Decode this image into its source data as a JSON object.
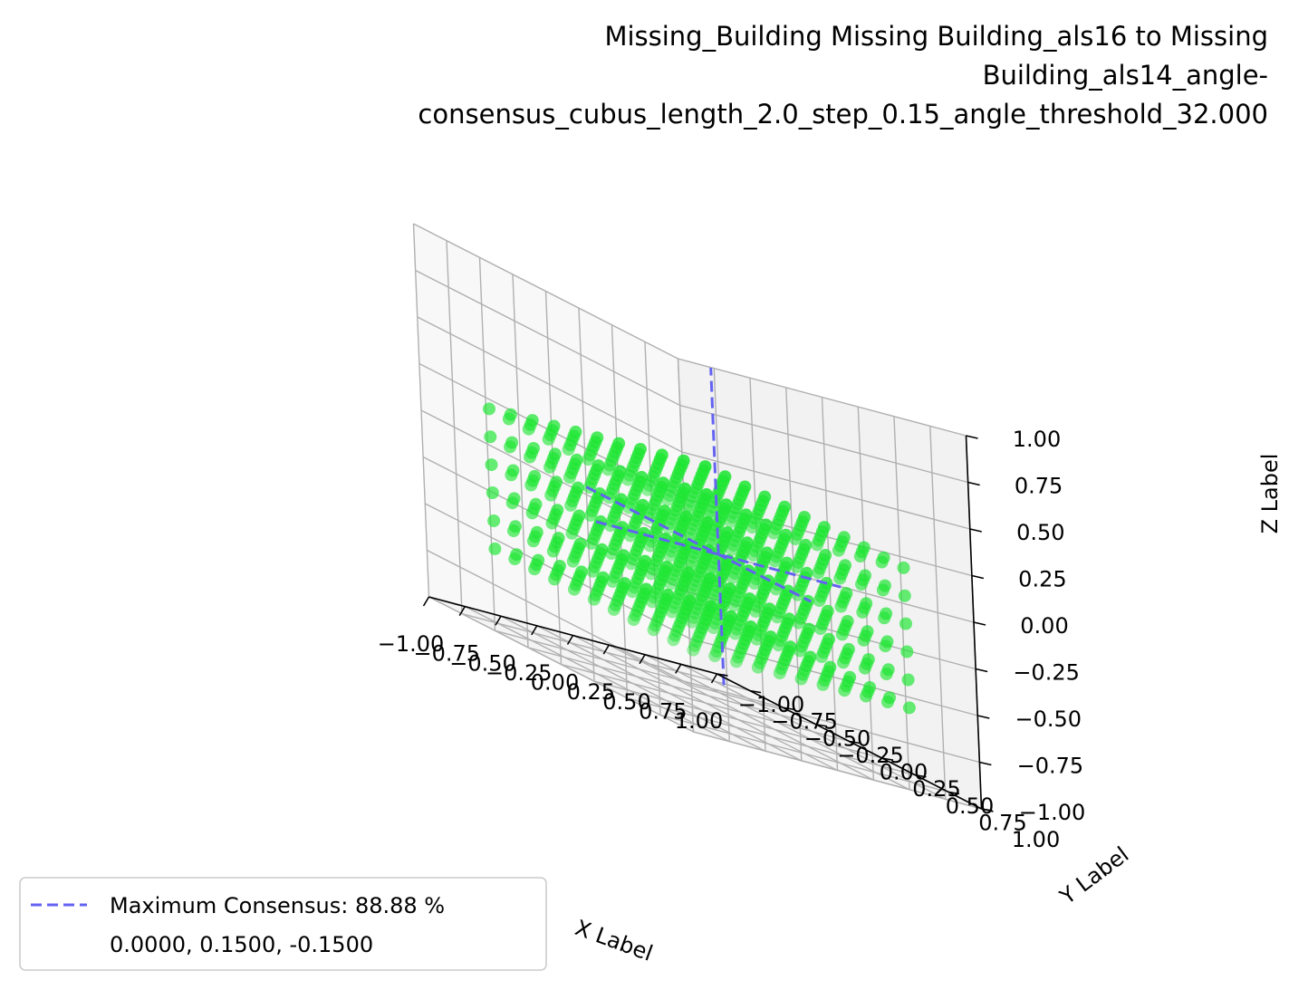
{
  "chart_data": {
    "type": "scatter",
    "title_lines": [
      "Missing_Building Missing Building_als16 to Missing",
      "Building_als14_angle-",
      "consensus_cubus_length_2.0_step_0.15_angle_threshold_32.000"
    ],
    "xlabel": "X Label",
    "ylabel": "Y Label",
    "zlabel": "Z Label",
    "xlim": [
      -1.0,
      1.0
    ],
    "ylim": [
      -1.0,
      1.0
    ],
    "zlim": [
      -1.0,
      1.0
    ],
    "x_ticks": [
      "−1.00",
      "−0.75",
      "−0.50",
      "−0.25",
      "0.00",
      "0.25",
      "0.50",
      "0.75",
      "1.00"
    ],
    "y_ticks": [
      "−1.00",
      "−0.75",
      "−0.50",
      "−0.25",
      "0.00",
      "0.25",
      "0.50",
      "0.75",
      "1.00"
    ],
    "z_ticks": [
      "−1.00",
      "−0.75",
      "−0.50",
      "−0.25",
      "0.00",
      "0.25",
      "0.50",
      "0.75",
      "1.00"
    ],
    "point_grid": {
      "x_values": [
        -0.75,
        -0.6,
        -0.45,
        -0.3,
        -0.15,
        0.0,
        0.15,
        0.3,
        0.45,
        0.6,
        0.75
      ],
      "y_values": [
        -0.75,
        -0.6,
        -0.45,
        -0.3,
        -0.15,
        0.0,
        0.15,
        0.3,
        0.45,
        0.6,
        0.75
      ],
      "z_values": [
        -0.6,
        -0.45,
        -0.3,
        -0.15,
        0.0,
        0.15
      ]
    },
    "point_color": "#1ee633",
    "maximum_consensus_point": {
      "x": 0.0,
      "y": 0.15,
      "z": -0.15
    },
    "crosshair_color": "#6363f2",
    "grid": true,
    "legend": {
      "placement": "bottom-left",
      "entries": [
        "Maximum Consensus: 88.88 %",
        "0.0000, 0.1500, -0.1500"
      ]
    }
  }
}
